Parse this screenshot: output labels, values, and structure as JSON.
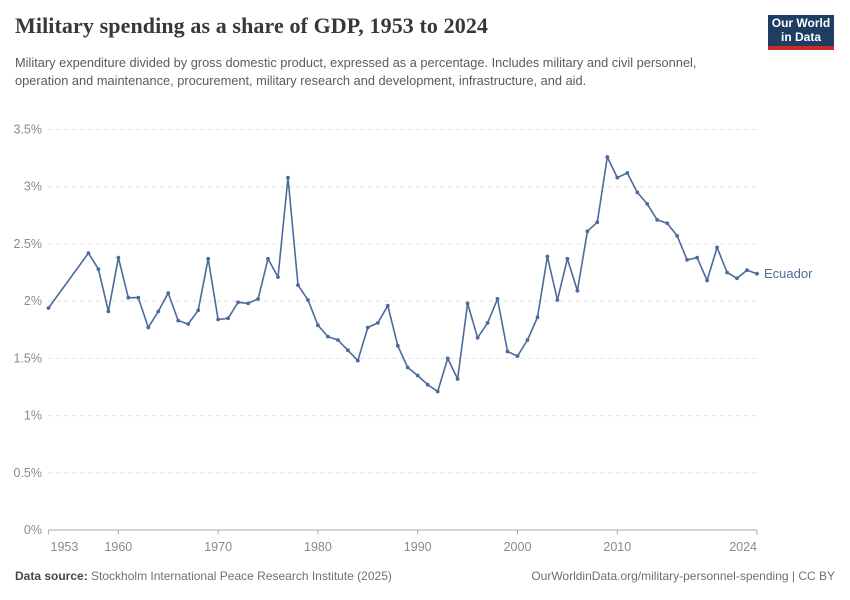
{
  "header": {
    "title": "Military spending as a share of GDP, 1953 to 2024",
    "subtitle": "Military expenditure divided by gross domestic product, expressed as a percentage. Includes military and civil personnel, operation and maintenance, procurement, military research and development, infrastructure, and aid.",
    "logo_line1": "Our World",
    "logo_line2": "in Data"
  },
  "footer": {
    "source_label": "Data source:",
    "source_text": " Stockholm International Peace Research Institute (2025)",
    "link_text": "OurWorldinData.org/military-personnel-spending | CC BY"
  },
  "colors": {
    "series": "#4C6A9C",
    "gridline": "#dddddd",
    "axis": "#a9a9a9",
    "tick_label": "#8a8a8a",
    "logo_bg": "#1d3d63",
    "logo_red": "#cb2d20"
  },
  "chart_data": {
    "type": "line",
    "title": "Military spending as a share of GDP, 1953 to 2024",
    "xlabel": "",
    "ylabel": "",
    "xlim": [
      1953,
      2024
    ],
    "ylim": [
      0,
      3.5
    ],
    "grid": true,
    "legend_position": "end-of-line",
    "x_ticks": [
      1953,
      1960,
      1970,
      1980,
      1990,
      2000,
      2010,
      2024
    ],
    "y_tick_values": [
      0,
      0.5,
      1,
      1.5,
      2,
      2.5,
      3,
      3.5
    ],
    "y_tick_labels": [
      "0%",
      "0.5%",
      "1%",
      "1.5%",
      "2%",
      "2.5%",
      "3%",
      "3.5%"
    ],
    "series": [
      {
        "name": "Ecuador",
        "color": "#4C6A9C",
        "unit": "% of GDP",
        "note": "no data 1954-1956",
        "points": [
          [
            1953,
            1.94
          ],
          [
            1957,
            2.42
          ],
          [
            1958,
            2.28
          ],
          [
            1959,
            1.91
          ],
          [
            1960,
            2.38
          ],
          [
            1961,
            2.03
          ],
          [
            1962,
            2.03
          ],
          [
            1963,
            1.77
          ],
          [
            1964,
            1.91
          ],
          [
            1965,
            2.07
          ],
          [
            1966,
            1.83
          ],
          [
            1967,
            1.8
          ],
          [
            1968,
            1.92
          ],
          [
            1969,
            2.37
          ],
          [
            1970,
            1.84
          ],
          [
            1971,
            1.85
          ],
          [
            1972,
            1.99
          ],
          [
            1973,
            1.98
          ],
          [
            1974,
            2.02
          ],
          [
            1975,
            2.37
          ],
          [
            1976,
            2.21
          ],
          [
            1977,
            3.08
          ],
          [
            1978,
            2.14
          ],
          [
            1979,
            2.01
          ],
          [
            1980,
            1.79
          ],
          [
            1981,
            1.69
          ],
          [
            1982,
            1.66
          ],
          [
            1983,
            1.57
          ],
          [
            1984,
            1.48
          ],
          [
            1985,
            1.77
          ],
          [
            1986,
            1.81
          ],
          [
            1987,
            1.96
          ],
          [
            1988,
            1.61
          ],
          [
            1989,
            1.42
          ],
          [
            1990,
            1.35
          ],
          [
            1991,
            1.27
          ],
          [
            1992,
            1.21
          ],
          [
            1993,
            1.5
          ],
          [
            1994,
            1.32
          ],
          [
            1995,
            1.98
          ],
          [
            1996,
            1.68
          ],
          [
            1997,
            1.81
          ],
          [
            1998,
            2.02
          ],
          [
            1999,
            1.56
          ],
          [
            2000,
            1.52
          ],
          [
            2001,
            1.66
          ],
          [
            2002,
            1.86
          ],
          [
            2003,
            2.39
          ],
          [
            2004,
            2.01
          ],
          [
            2005,
            2.37
          ],
          [
            2006,
            2.09
          ],
          [
            2007,
            2.61
          ],
          [
            2008,
            2.69
          ],
          [
            2009,
            3.26
          ],
          [
            2010,
            3.08
          ],
          [
            2011,
            3.12
          ],
          [
            2012,
            2.95
          ],
          [
            2013,
            2.85
          ],
          [
            2014,
            2.71
          ],
          [
            2015,
            2.68
          ],
          [
            2016,
            2.57
          ],
          [
            2017,
            2.36
          ],
          [
            2018,
            2.38
          ],
          [
            2019,
            2.18
          ],
          [
            2020,
            2.47
          ],
          [
            2021,
            2.25
          ],
          [
            2022,
            2.2
          ],
          [
            2023,
            2.27
          ],
          [
            2024,
            2.24
          ]
        ]
      }
    ]
  }
}
